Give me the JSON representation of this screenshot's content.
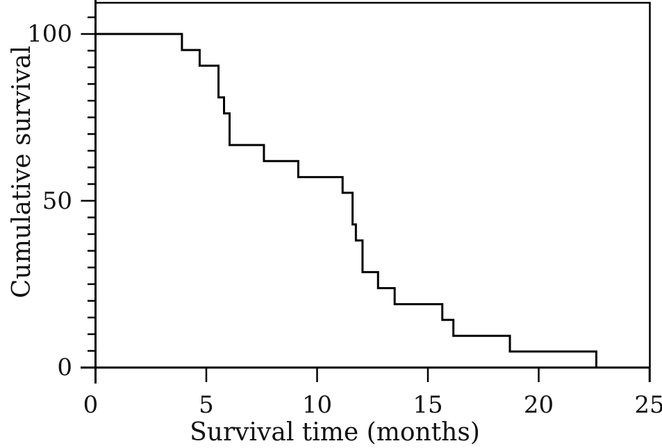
{
  "chart_data": {
    "type": "line",
    "subtype": "kaplan-meier-step",
    "title": "",
    "xlabel": "Survival time (months)",
    "ylabel": "Cumulative survival",
    "xlim": [
      0,
      25
    ],
    "ylim": [
      0,
      100
    ],
    "x_ticks": [
      0,
      5,
      10,
      15,
      20,
      25
    ],
    "y_ticks": [
      0,
      50,
      100
    ],
    "y_minor_ticks": [
      5,
      10,
      15,
      20,
      25,
      30,
      35,
      40,
      45,
      55,
      60,
      65,
      70,
      75,
      80,
      85,
      90,
      95,
      105
    ],
    "grid": false,
    "legend_position": "none",
    "line_color": "#000000",
    "background_color": "#ffffff",
    "series": [
      {
        "name": "cumulative-survival",
        "start": [
          0,
          100
        ],
        "steps": [
          [
            3.9,
            95.2
          ],
          [
            4.7,
            90.5
          ],
          [
            5.55,
            81.0
          ],
          [
            5.8,
            76.2
          ],
          [
            6.05,
            66.7
          ],
          [
            7.6,
            61.9
          ],
          [
            9.15,
            57.1
          ],
          [
            11.15,
            52.4
          ],
          [
            11.6,
            42.9
          ],
          [
            11.75,
            38.1
          ],
          [
            12.05,
            28.6
          ],
          [
            12.75,
            23.8
          ],
          [
            13.5,
            19.0
          ],
          [
            15.65,
            14.3
          ],
          [
            16.15,
            9.5
          ],
          [
            18.7,
            4.8
          ],
          [
            22.6,
            0
          ]
        ]
      }
    ]
  }
}
